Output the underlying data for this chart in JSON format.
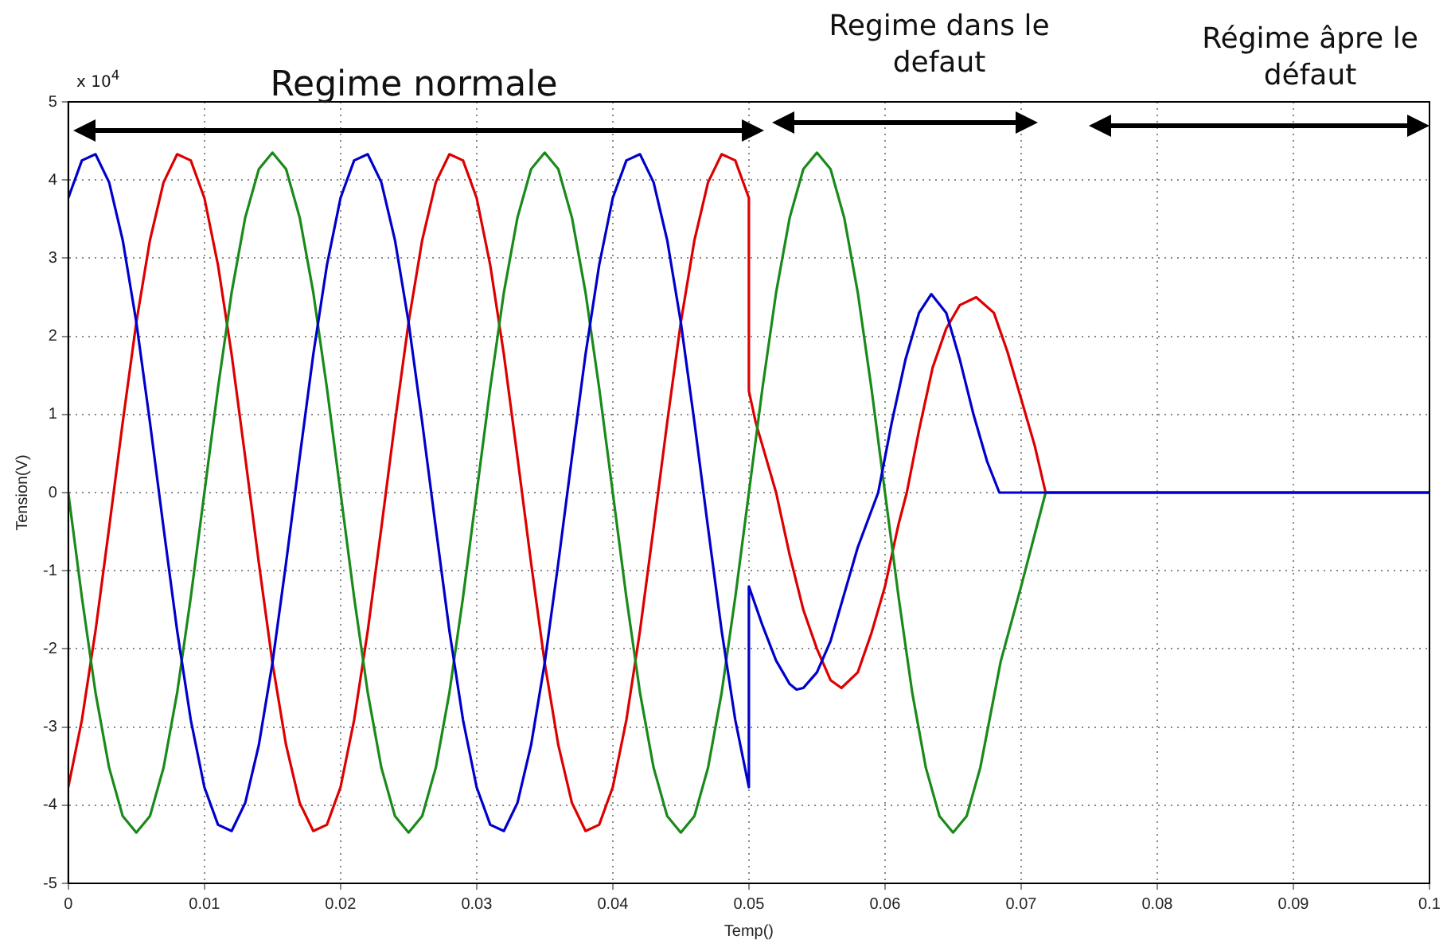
{
  "chart_data": {
    "type": "line",
    "xlabel": "Temp()",
    "ylabel": "Tension(V)",
    "xlim": [
      0,
      0.1
    ],
    "xticks": [
      0,
      0.01,
      0.02,
      0.03,
      0.04,
      0.05,
      0.06,
      0.07,
      0.08,
      0.09,
      0.1
    ],
    "ylim": [
      -5,
      5
    ],
    "yticks": [
      -5,
      -4,
      -3,
      -2,
      -1,
      0,
      1,
      2,
      3,
      4,
      5
    ],
    "grid": true,
    "legend": false,
    "marker": "none",
    "line_style": "solid",
    "annotations": [
      "x 10$^{4}$",
      "Regime normale",
      "Regime dans le defaut",
      "Régime âpre le défaut"
    ],
    "series": [
      {
        "color": "#0000cc",
        "x": [
          0,
          0.001,
          0.002,
          0.003,
          0.004,
          0.005,
          0.006,
          0.007,
          0.008,
          0.009,
          0.01,
          0.011,
          0.012,
          0.013,
          0.014,
          0.015,
          0.016,
          0.017,
          0.018,
          0.019,
          0.02,
          0.021,
          0.022,
          0.023,
          0.024,
          0.025,
          0.026,
          0.027,
          0.028,
          0.029,
          0.03,
          0.031,
          0.032,
          0.033,
          0.034,
          0.035,
          0.036,
          0.037,
          0.038,
          0.039,
          0.04,
          0.041,
          0.042,
          0.043,
          0.044,
          0.045,
          0.046,
          0.047,
          0.048,
          0.049,
          0.05,
          0.05,
          0.051,
          0.052,
          0.053,
          0.0535,
          0.054,
          0.055,
          0.056,
          0.057,
          0.058,
          0.0595,
          0.0605,
          0.0615,
          0.0625,
          0.0634,
          0.0645,
          0.0655,
          0.0665,
          0.0675,
          0.0684,
          0.1
        ],
        "values": [
          3.77,
          4.25,
          4.33,
          3.97,
          3.23,
          2.18,
          0.9,
          -0.45,
          -1.77,
          -2.91,
          -3.77,
          -4.25,
          -4.33,
          -3.97,
          -3.23,
          -2.18,
          -0.9,
          0.45,
          1.77,
          2.91,
          3.77,
          4.25,
          4.33,
          3.97,
          3.23,
          2.18,
          0.9,
          -0.45,
          -1.77,
          -2.91,
          -3.77,
          -4.25,
          -4.33,
          -3.97,
          -3.23,
          -2.18,
          -0.9,
          0.45,
          1.77,
          2.91,
          3.77,
          4.25,
          4.33,
          3.97,
          3.23,
          2.18,
          0.9,
          -0.45,
          -1.77,
          -2.91,
          -3.77,
          -1.2,
          -1.7,
          -2.15,
          -2.45,
          -2.52,
          -2.5,
          -2.3,
          -1.9,
          -1.3,
          -0.7,
          0,
          0.9,
          1.7,
          2.3,
          2.54,
          2.3,
          1.7,
          1.0,
          0.4,
          0,
          0
        ]
      },
      {
        "color": "#1a8a1a",
        "x": [
          0,
          0.001,
          0.002,
          0.003,
          0.004,
          0.005,
          0.006,
          0.007,
          0.008,
          0.009,
          0.01,
          0.011,
          0.012,
          0.013,
          0.014,
          0.015,
          0.016,
          0.017,
          0.018,
          0.019,
          0.02,
          0.021,
          0.022,
          0.023,
          0.024,
          0.025,
          0.026,
          0.027,
          0.028,
          0.029,
          0.03,
          0.031,
          0.032,
          0.033,
          0.034,
          0.035,
          0.036,
          0.037,
          0.038,
          0.039,
          0.04,
          0.041,
          0.042,
          0.043,
          0.044,
          0.045,
          0.046,
          0.047,
          0.048,
          0.049,
          0.05,
          0.051,
          0.052,
          0.053,
          0.054,
          0.055,
          0.056,
          0.057,
          0.058,
          0.059,
          0.06,
          0.061,
          0.062,
          0.063,
          0.064,
          0.065,
          0.066,
          0.067,
          0.0685,
          0.07,
          0.0718,
          0.1
        ],
        "values": [
          0,
          -1.34,
          -2.56,
          -3.52,
          -4.14,
          -4.35,
          -4.14,
          -3.52,
          -2.56,
          -1.34,
          0,
          1.34,
          2.56,
          3.52,
          4.14,
          4.35,
          4.14,
          3.52,
          2.56,
          1.34,
          0,
          -1.34,
          -2.56,
          -3.52,
          -4.14,
          -4.35,
          -4.14,
          -3.52,
          -2.56,
          -1.34,
          0,
          1.34,
          2.56,
          3.52,
          4.14,
          4.35,
          4.14,
          3.52,
          2.56,
          1.34,
          0,
          -1.34,
          -2.56,
          -3.52,
          -4.14,
          -4.35,
          -4.14,
          -3.52,
          -2.56,
          -1.34,
          0,
          1.34,
          2.56,
          3.52,
          4.14,
          4.35,
          4.14,
          3.52,
          2.56,
          1.34,
          0,
          -1.34,
          -2.56,
          -3.52,
          -4.14,
          -4.35,
          -4.14,
          -3.52,
          -2.16,
          -1.2,
          0,
          0
        ]
      },
      {
        "color": "#dd0000",
        "x": [
          0,
          0.001,
          0.002,
          0.003,
          0.004,
          0.005,
          0.006,
          0.007,
          0.008,
          0.009,
          0.01,
          0.011,
          0.012,
          0.013,
          0.014,
          0.015,
          0.016,
          0.017,
          0.018,
          0.019,
          0.02,
          0.021,
          0.022,
          0.023,
          0.024,
          0.025,
          0.026,
          0.027,
          0.028,
          0.029,
          0.03,
          0.031,
          0.032,
          0.033,
          0.034,
          0.035,
          0.036,
          0.037,
          0.038,
          0.039,
          0.04,
          0.041,
          0.042,
          0.043,
          0.044,
          0.045,
          0.046,
          0.047,
          0.048,
          0.049,
          0.05,
          0.05,
          0.0505,
          0.052,
          0.053,
          0.054,
          0.055,
          0.056,
          0.0568,
          0.058,
          0.059,
          0.06,
          0.061,
          0.0616,
          0.0625,
          0.0635,
          0.0645,
          0.0655,
          0.0667,
          0.068,
          0.069,
          0.07,
          0.071,
          0.0718,
          0.1
        ],
        "values": [
          -3.77,
          -2.91,
          -1.77,
          -0.45,
          0.9,
          2.18,
          3.23,
          3.97,
          4.33,
          4.25,
          3.77,
          2.91,
          1.77,
          0.45,
          -0.9,
          -2.18,
          -3.23,
          -3.97,
          -4.33,
          -4.25,
          -3.77,
          -2.91,
          -1.77,
          -0.45,
          0.9,
          2.18,
          3.23,
          3.97,
          4.33,
          4.25,
          3.77,
          2.91,
          1.77,
          0.45,
          -0.9,
          -2.18,
          -3.23,
          -3.97,
          -4.33,
          -4.25,
          -3.77,
          -2.91,
          -1.77,
          -0.45,
          0.9,
          2.18,
          3.23,
          3.97,
          4.33,
          4.25,
          3.77,
          1.3,
          0.9,
          0,
          -0.8,
          -1.5,
          -2.0,
          -2.4,
          -2.5,
          -2.3,
          -1.8,
          -1.2,
          -0.4,
          0,
          0.8,
          1.6,
          2.1,
          2.4,
          2.5,
          2.3,
          1.8,
          1.2,
          0.6,
          0,
          0
        ]
      }
    ]
  }
}
